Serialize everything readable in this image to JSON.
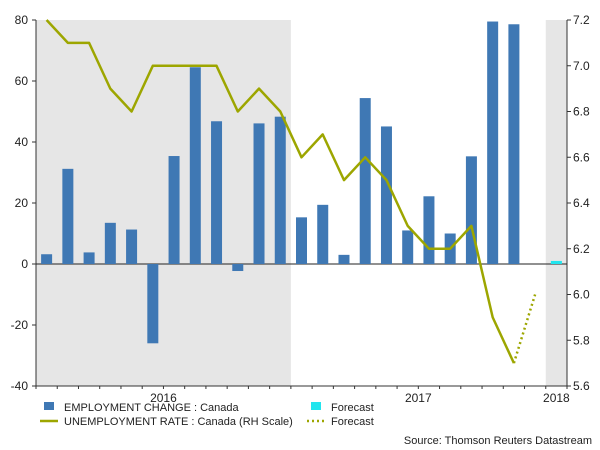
{
  "chart_data": {
    "type": "bar+line",
    "months": [
      "Jan 2016",
      "Feb 2016",
      "Mar 2016",
      "Apr 2016",
      "May 2016",
      "Jun 2016",
      "Jul 2016",
      "Aug 2016",
      "Sep 2016",
      "Oct 2016",
      "Nov 2016",
      "Dec 2016",
      "Jan 2017",
      "Feb 2017",
      "Mar 2017",
      "Apr 2017",
      "May 2017",
      "Jun 2017",
      "Jul 2017",
      "Aug 2017",
      "Sep 2017",
      "Oct 2017",
      "Nov 2017",
      "Dec 2017",
      "Jan 2018"
    ],
    "left_axis": {
      "range": [
        -40,
        80
      ],
      "ticks": [
        80,
        60,
        40,
        20,
        0,
        -20,
        -40
      ]
    },
    "right_axis": {
      "range": [
        5.6,
        7.2
      ],
      "ticks": [
        "7.2",
        "7.0",
        "6.8",
        "6.6",
        "6.4",
        "6.2",
        "6.0",
        "5.8",
        "5.6"
      ]
    },
    "x_labels": [
      "2016",
      "2017",
      "2018"
    ],
    "shaded_periods": [
      "2016",
      "2018"
    ],
    "series": [
      {
        "name": "EMPLOYMENT CHANGE : Canada",
        "type": "bar",
        "color": "#3f78b4",
        "values": [
          3.2,
          31.2,
          3.8,
          13.5,
          11.3,
          -26.0,
          35.4,
          64.5,
          46.8,
          -2.3,
          46.1,
          48.3,
          15.3,
          19.4,
          3.0,
          54.4,
          45.1,
          11.0,
          22.2,
          10.0,
          35.3,
          79.5,
          78.6,
          null,
          null
        ]
      },
      {
        "name": "Forecast",
        "type": "bar",
        "color": "#22e5ee",
        "values": [
          null,
          null,
          null,
          null,
          null,
          null,
          null,
          null,
          null,
          null,
          null,
          null,
          null,
          null,
          null,
          null,
          null,
          null,
          null,
          null,
          null,
          null,
          null,
          null,
          1.0
        ]
      },
      {
        "name": "UNEMPLOYMENT RATE : Canada (RH Scale)",
        "type": "line",
        "axis": "right",
        "color": "#9da600",
        "values": [
          7.2,
          7.1,
          7.1,
          6.9,
          6.8,
          7.0,
          7.0,
          7.0,
          7.0,
          6.8,
          6.9,
          6.8,
          6.6,
          6.7,
          6.5,
          6.6,
          6.5,
          6.3,
          6.2,
          6.2,
          6.3,
          5.9,
          5.7,
          null,
          null
        ]
      },
      {
        "name": "Forecast",
        "type": "line",
        "axis": "right",
        "style": "dotted",
        "color": "#9da600",
        "values": [
          null,
          null,
          null,
          null,
          null,
          null,
          null,
          null,
          null,
          null,
          null,
          null,
          null,
          null,
          null,
          null,
          null,
          null,
          null,
          null,
          null,
          null,
          5.7,
          6.0,
          null
        ]
      }
    ],
    "legend": [
      {
        "label": "EMPLOYMENT CHANGE : Canada",
        "kind": "box",
        "color": "#3f78b4"
      },
      {
        "label": "Forecast",
        "kind": "box",
        "color": "#22e5ee"
      },
      {
        "label": "UNEMPLOYMENT RATE : Canada (RH Scale)",
        "kind": "line",
        "color": "#9da600"
      },
      {
        "label": "Forecast",
        "kind": "dotted",
        "color": "#9da600"
      }
    ],
    "source": "Source: Thomson Reuters Datastream"
  }
}
